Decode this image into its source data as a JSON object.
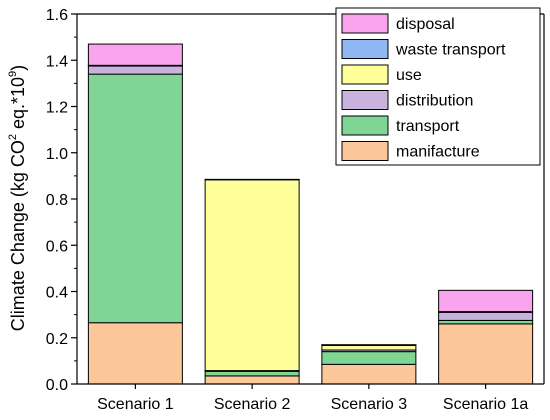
{
  "chart_data": {
    "type": "bar",
    "stacked": true,
    "categories": [
      "Scenario 1",
      "Scenario 2",
      "Scenario 3",
      "Scenario 1a"
    ],
    "ylabel": {
      "prefix": "Climate Change (kg CO",
      "sub_sup": "2",
      "middle": " eq.*10",
      "exponent": "9",
      "suffix": ")"
    },
    "ylim": [
      0,
      1.6
    ],
    "yticks": [
      0.0,
      0.2,
      0.4,
      0.6,
      0.8,
      1.0,
      1.2,
      1.4,
      1.6
    ],
    "ytick_labels": [
      "0.0",
      "0.2",
      "0.4",
      "0.6",
      "0.8",
      "1.0",
      "1.2",
      "1.4",
      "1.6"
    ],
    "grid": false,
    "legend_position": "top-right",
    "series": [
      {
        "name": "manifacture",
        "color": "#FCC899",
        "values": [
          0.265,
          0.035,
          0.085,
          0.26
        ]
      },
      {
        "name": "transport",
        "color": "#7FD694",
        "values": [
          1.075,
          0.02,
          0.055,
          0.015
        ]
      },
      {
        "name": "distribution",
        "color": "#C9B2DB",
        "values": [
          0.035,
          0.003,
          0.007,
          0.035
        ]
      },
      {
        "name": "use",
        "color": "#FFFF99",
        "values": [
          0.0,
          0.825,
          0.02,
          0.0
        ]
      },
      {
        "name": "waste transport",
        "color": "#8FB8F5",
        "values": [
          0.003,
          0.002,
          0.001,
          0.003
        ]
      },
      {
        "name": "disposal",
        "color": "#FAA4EE",
        "values": [
          0.092,
          0.0,
          0.002,
          0.092
        ]
      }
    ],
    "legend_order": [
      "disposal",
      "waste transport",
      "use",
      "distribution",
      "transport",
      "manifacture"
    ]
  }
}
